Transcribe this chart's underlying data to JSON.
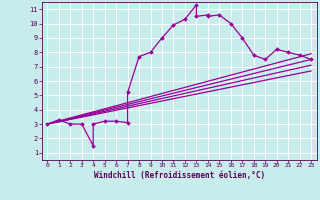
{
  "xlabel": "Windchill (Refroidissement éolien,°C)",
  "bg_color": "#c8ecec",
  "grid_color": "#ffffff",
  "line_color": "#990099",
  "xlim": [
    -0.5,
    23.5
  ],
  "ylim": [
    0.5,
    11.5
  ],
  "xticks": [
    0,
    1,
    2,
    3,
    4,
    5,
    6,
    7,
    8,
    9,
    10,
    11,
    12,
    13,
    14,
    15,
    16,
    17,
    18,
    19,
    20,
    21,
    22,
    23
  ],
  "yticks": [
    1,
    2,
    3,
    4,
    5,
    6,
    7,
    8,
    9,
    10,
    11
  ],
  "main_line_x": [
    0,
    1,
    2,
    3,
    4,
    4,
    5,
    6,
    7,
    7,
    8,
    9,
    10,
    11,
    12,
    13,
    13,
    14,
    14,
    15,
    16,
    17,
    18,
    19,
    20,
    21,
    22,
    23
  ],
  "main_line_y": [
    3.0,
    3.3,
    3.0,
    3.0,
    1.5,
    3.0,
    3.2,
    3.2,
    3.1,
    5.2,
    7.7,
    8.0,
    9.0,
    9.9,
    10.3,
    11.3,
    10.5,
    10.6,
    10.5,
    10.6,
    10.0,
    9.0,
    7.8,
    7.5,
    8.2,
    8.0,
    7.8,
    7.5
  ],
  "line1_x": [
    0,
    23
  ],
  "line1_y": [
    3.0,
    7.5
  ],
  "line2_x": [
    0,
    23
  ],
  "line2_y": [
    3.0,
    7.1
  ],
  "line3_x": [
    0,
    23
  ],
  "line3_y": [
    3.0,
    6.7
  ],
  "line4_x": [
    0,
    23
  ],
  "line4_y": [
    3.0,
    7.9
  ]
}
